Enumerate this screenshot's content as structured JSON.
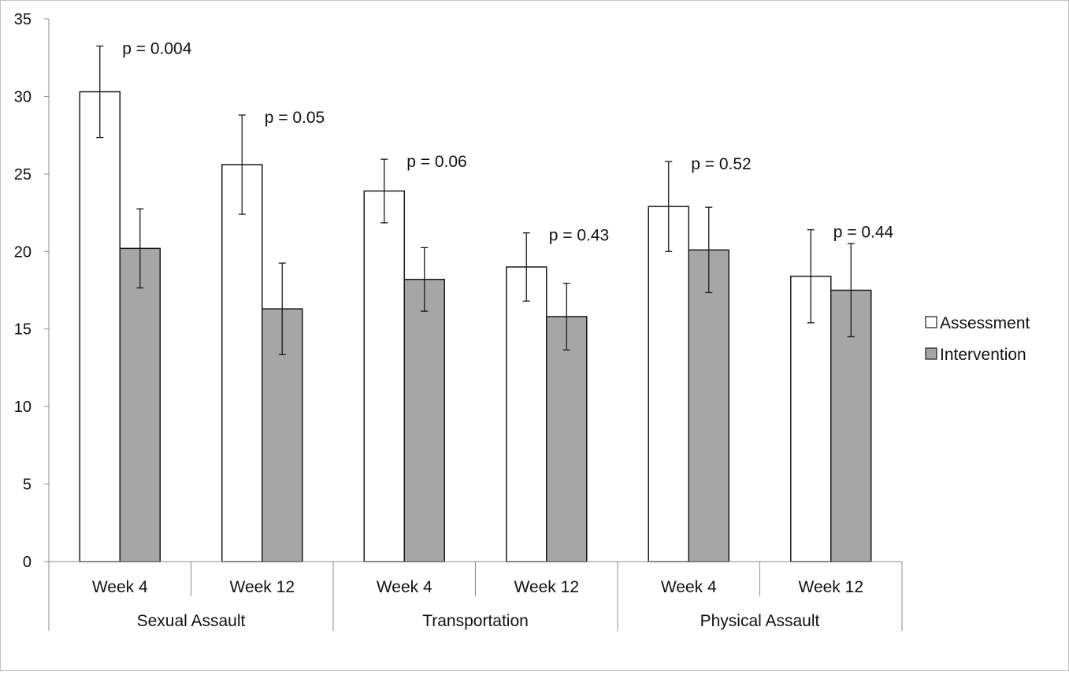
{
  "chart_data": {
    "type": "bar",
    "title": "",
    "xlabel": "",
    "ylabel": "",
    "ylim": [
      0,
      35
    ],
    "yticks": [
      0,
      5,
      10,
      15,
      20,
      25,
      30,
      35
    ],
    "grid": false,
    "legend_position": "right",
    "groups": [
      {
        "label": "Sexual Assault",
        "categories": [
          "Week 4",
          "Week 12"
        ]
      },
      {
        "label": "Transportation",
        "categories": [
          "Week 4",
          "Week 12"
        ]
      },
      {
        "label": "Physical Assault",
        "categories": [
          "Week 4",
          "Week 12"
        ]
      }
    ],
    "categories": [
      "Sexual Assault - Week 4",
      "Sexual Assault - Week 12",
      "Transportation - Week 4",
      "Transportation - Week 12",
      "Physical Assault - Week 4",
      "Physical Assault - Week 12"
    ],
    "series": [
      {
        "name": "Assessment",
        "color": "#ffffff",
        "values": [
          30.3,
          25.6,
          23.9,
          19.0,
          22.9,
          18.4
        ],
        "error": [
          2.95,
          3.2,
          2.05,
          2.2,
          2.9,
          3.0
        ]
      },
      {
        "name": "Intervention",
        "color": "#a6a6a6",
        "values": [
          20.2,
          16.3,
          18.2,
          15.8,
          20.1,
          17.5
        ],
        "error": [
          2.55,
          2.95,
          2.05,
          2.15,
          2.75,
          3.0
        ]
      }
    ],
    "annotations": [
      "p = 0.004",
      "p = 0.05",
      "p = 0.06",
      "p = 0.43",
      "p = 0.52",
      "p = 0.44"
    ]
  }
}
